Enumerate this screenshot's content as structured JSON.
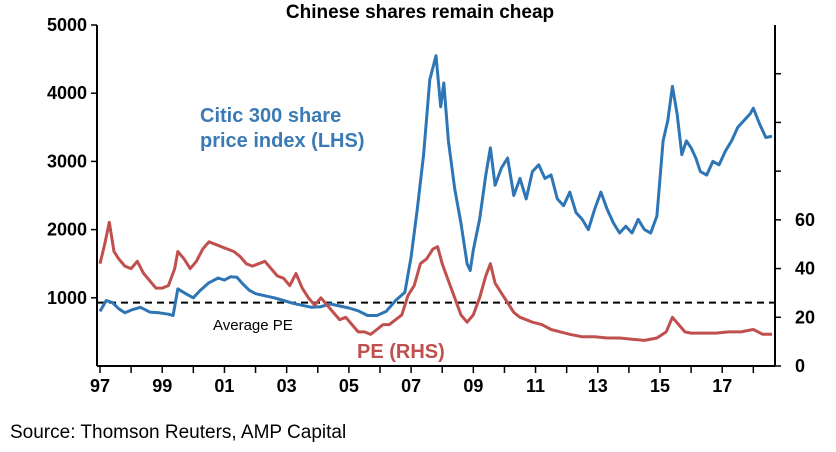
{
  "chart_data": {
    "type": "line",
    "title": "Chinese  shares remain cheap",
    "x_tick_labels": [
      "97",
      "99",
      "01",
      "03",
      "05",
      "07",
      "09",
      "11",
      "13",
      "15",
      "17"
    ],
    "xlim": [
      1997.0,
      2018.6
    ],
    "left_axis": {
      "ylim": [
        0,
        5000
      ],
      "ticks": [
        1000,
        2000,
        3000,
        4000,
        5000
      ],
      "tick_labels": [
        "1000",
        "2000",
        "3000",
        "4000",
        "5000"
      ]
    },
    "right_axis": {
      "ylim": [
        0,
        140
      ],
      "ticks": [
        0,
        20,
        40,
        60
      ],
      "tick_labels": [
        "0",
        "20",
        "40",
        "60"
      ],
      "extra_ticks": [
        80,
        100,
        120
      ]
    },
    "series": [
      {
        "name": "Citic 300 share price index (LHS)",
        "axis": "left",
        "color": "#2e75b6",
        "points": [
          [
            1997.0,
            800
          ],
          [
            1997.2,
            960
          ],
          [
            1997.4,
            930
          ],
          [
            1997.6,
            840
          ],
          [
            1997.8,
            780
          ],
          [
            1998.0,
            820
          ],
          [
            1998.3,
            860
          ],
          [
            1998.6,
            790
          ],
          [
            1998.9,
            780
          ],
          [
            1999.2,
            760
          ],
          [
            1999.35,
            740
          ],
          [
            1999.5,
            1130
          ],
          [
            1999.8,
            1050
          ],
          [
            2000.0,
            1000
          ],
          [
            2000.2,
            1100
          ],
          [
            2000.5,
            1220
          ],
          [
            2000.8,
            1290
          ],
          [
            2001.0,
            1260
          ],
          [
            2001.2,
            1310
          ],
          [
            2001.4,
            1300
          ],
          [
            2001.6,
            1200
          ],
          [
            2001.8,
            1110
          ],
          [
            2002.0,
            1060
          ],
          [
            2002.3,
            1030
          ],
          [
            2002.6,
            1000
          ],
          [
            2002.9,
            960
          ],
          [
            2003.2,
            920
          ],
          [
            2003.5,
            890
          ],
          [
            2003.8,
            860
          ],
          [
            2004.1,
            870
          ],
          [
            2004.4,
            910
          ],
          [
            2004.7,
            880
          ],
          [
            2005.0,
            850
          ],
          [
            2005.3,
            810
          ],
          [
            2005.6,
            740
          ],
          [
            2005.9,
            740
          ],
          [
            2006.2,
            800
          ],
          [
            2006.5,
            960
          ],
          [
            2006.8,
            1080
          ],
          [
            2007.0,
            1600
          ],
          [
            2007.2,
            2300
          ],
          [
            2007.4,
            3100
          ],
          [
            2007.6,
            4200
          ],
          [
            2007.8,
            4550
          ],
          [
            2007.95,
            3800
          ],
          [
            2008.05,
            4150
          ],
          [
            2008.2,
            3300
          ],
          [
            2008.4,
            2600
          ],
          [
            2008.6,
            2100
          ],
          [
            2008.8,
            1500
          ],
          [
            2008.9,
            1400
          ],
          [
            2009.0,
            1700
          ],
          [
            2009.2,
            2150
          ],
          [
            2009.4,
            2800
          ],
          [
            2009.55,
            3200
          ],
          [
            2009.7,
            2650
          ],
          [
            2009.9,
            2900
          ],
          [
            2010.1,
            3050
          ],
          [
            2010.3,
            2500
          ],
          [
            2010.5,
            2750
          ],
          [
            2010.7,
            2450
          ],
          [
            2010.9,
            2850
          ],
          [
            2011.1,
            2950
          ],
          [
            2011.3,
            2750
          ],
          [
            2011.5,
            2800
          ],
          [
            2011.7,
            2450
          ],
          [
            2011.9,
            2350
          ],
          [
            2012.1,
            2550
          ],
          [
            2012.3,
            2250
          ],
          [
            2012.5,
            2150
          ],
          [
            2012.7,
            2000
          ],
          [
            2012.9,
            2300
          ],
          [
            2013.1,
            2550
          ],
          [
            2013.3,
            2300
          ],
          [
            2013.5,
            2100
          ],
          [
            2013.7,
            1950
          ],
          [
            2013.9,
            2050
          ],
          [
            2014.1,
            1950
          ],
          [
            2014.3,
            2150
          ],
          [
            2014.5,
            2000
          ],
          [
            2014.7,
            1950
          ],
          [
            2014.9,
            2200
          ],
          [
            2015.1,
            3300
          ],
          [
            2015.25,
            3600
          ],
          [
            2015.4,
            4100
          ],
          [
            2015.55,
            3700
          ],
          [
            2015.7,
            3100
          ],
          [
            2015.85,
            3300
          ],
          [
            2016.0,
            3200
          ],
          [
            2016.15,
            3050
          ],
          [
            2016.3,
            2850
          ],
          [
            2016.5,
            2800
          ],
          [
            2016.7,
            3000
          ],
          [
            2016.9,
            2950
          ],
          [
            2017.1,
            3150
          ],
          [
            2017.3,
            3300
          ],
          [
            2017.5,
            3500
          ],
          [
            2017.7,
            3600
          ],
          [
            2017.9,
            3700
          ],
          [
            2018.0,
            3780
          ],
          [
            2018.2,
            3550
          ],
          [
            2018.4,
            3350
          ],
          [
            2018.6,
            3370
          ]
        ]
      },
      {
        "name": "PE (RHS)",
        "axis": "right",
        "color": "#c0504d",
        "points": [
          [
            1997.0,
            42
          ],
          [
            1997.15,
            50
          ],
          [
            1997.3,
            59
          ],
          [
            1997.45,
            47
          ],
          [
            1997.6,
            44
          ],
          [
            1997.8,
            41
          ],
          [
            1998.0,
            40
          ],
          [
            1998.2,
            43
          ],
          [
            1998.4,
            38
          ],
          [
            1998.6,
            35
          ],
          [
            1998.8,
            32
          ],
          [
            1999.0,
            32
          ],
          [
            1999.2,
            33
          ],
          [
            1999.4,
            40
          ],
          [
            1999.5,
            47
          ],
          [
            1999.7,
            44
          ],
          [
            1999.9,
            40
          ],
          [
            2000.1,
            43
          ],
          [
            2000.3,
            48
          ],
          [
            2000.5,
            51
          ],
          [
            2000.7,
            50
          ],
          [
            2000.9,
            49
          ],
          [
            2001.1,
            48
          ],
          [
            2001.3,
            47
          ],
          [
            2001.5,
            45
          ],
          [
            2001.7,
            42
          ],
          [
            2001.9,
            41
          ],
          [
            2002.1,
            42
          ],
          [
            2002.3,
            43
          ],
          [
            2002.5,
            40
          ],
          [
            2002.7,
            37
          ],
          [
            2002.9,
            36
          ],
          [
            2003.1,
            33
          ],
          [
            2003.3,
            38
          ],
          [
            2003.5,
            32
          ],
          [
            2003.7,
            28
          ],
          [
            2003.9,
            25
          ],
          [
            2004.1,
            28
          ],
          [
            2004.3,
            25
          ],
          [
            2004.5,
            22
          ],
          [
            2004.7,
            19
          ],
          [
            2004.9,
            20
          ],
          [
            2005.1,
            17
          ],
          [
            2005.3,
            14
          ],
          [
            2005.5,
            14
          ],
          [
            2005.7,
            13
          ],
          [
            2005.9,
            15
          ],
          [
            2006.1,
            17
          ],
          [
            2006.3,
            17
          ],
          [
            2006.5,
            19
          ],
          [
            2006.7,
            21
          ],
          [
            2006.9,
            29
          ],
          [
            2007.1,
            33
          ],
          [
            2007.3,
            42
          ],
          [
            2007.5,
            44
          ],
          [
            2007.7,
            48
          ],
          [
            2007.85,
            49
          ],
          [
            2008.0,
            42
          ],
          [
            2008.2,
            35
          ],
          [
            2008.4,
            28
          ],
          [
            2008.6,
            21
          ],
          [
            2008.8,
            18
          ],
          [
            2009.0,
            21
          ],
          [
            2009.2,
            28
          ],
          [
            2009.4,
            37
          ],
          [
            2009.55,
            42
          ],
          [
            2009.7,
            34
          ],
          [
            2009.9,
            30
          ],
          [
            2010.1,
            26
          ],
          [
            2010.3,
            22
          ],
          [
            2010.5,
            20
          ],
          [
            2010.7,
            19
          ],
          [
            2010.9,
            18
          ],
          [
            2011.2,
            17
          ],
          [
            2011.5,
            15
          ],
          [
            2011.8,
            14
          ],
          [
            2012.1,
            13
          ],
          [
            2012.5,
            12
          ],
          [
            2012.9,
            12
          ],
          [
            2013.3,
            11.5
          ],
          [
            2013.7,
            11.5
          ],
          [
            2014.1,
            11
          ],
          [
            2014.5,
            10.5
          ],
          [
            2014.9,
            11.5
          ],
          [
            2015.2,
            14
          ],
          [
            2015.4,
            20
          ],
          [
            2015.6,
            17
          ],
          [
            2015.8,
            14
          ],
          [
            2016.0,
            13.5
          ],
          [
            2016.4,
            13.5
          ],
          [
            2016.8,
            13.5
          ],
          [
            2017.2,
            14
          ],
          [
            2017.6,
            14
          ],
          [
            2018.0,
            15
          ],
          [
            2018.3,
            13
          ],
          [
            2018.6,
            13
          ]
        ]
      }
    ],
    "reference_line": {
      "axis": "right",
      "value": 26,
      "style": "dashed",
      "label": "Average PE"
    },
    "annotations": [
      {
        "lines": [
          "Citic 300 share",
          "price index (LHS)"
        ],
        "series": 0
      },
      {
        "lines": [
          "PE (RHS)"
        ],
        "series": 1
      }
    ],
    "grid": false,
    "legend": "none"
  },
  "source": "Source: Thomson Reuters, AMP Capital"
}
